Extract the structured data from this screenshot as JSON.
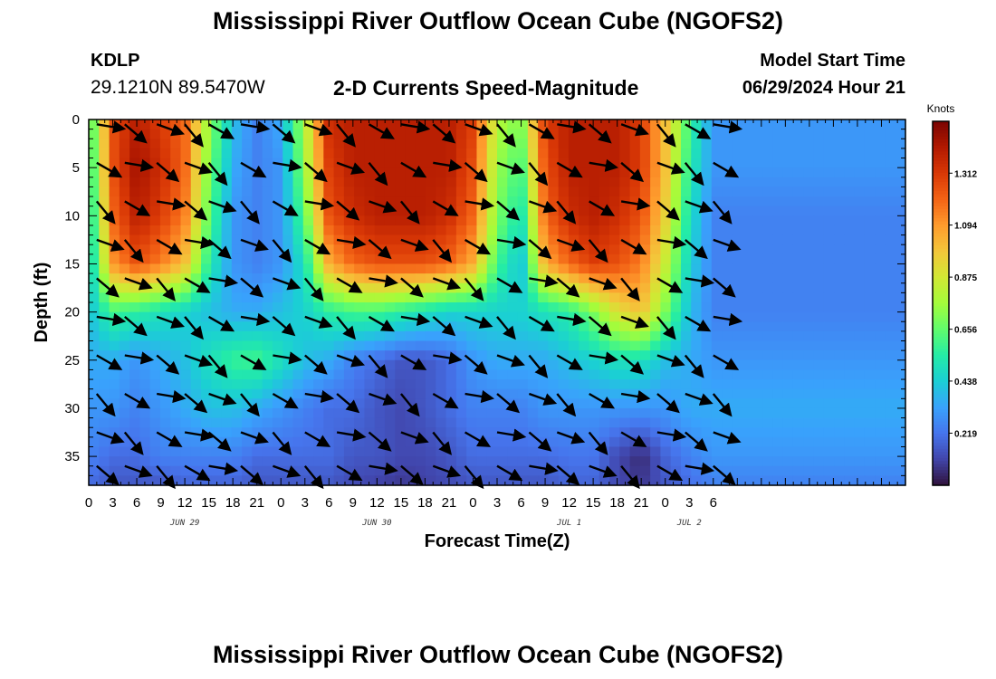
{
  "header": {
    "title": "Mississippi River Outflow Ocean Cube (NGOFS2)",
    "station_id": "KDLP",
    "station_coords": "29.1210N  89.5470W",
    "subtitle": "2-D Currents Speed-Magnitude",
    "model_start_label": "Model Start Time",
    "model_start_value": "06/29/2024 Hour 21"
  },
  "footer": {
    "title": "Mississippi River Outflow Ocean Cube (NGOFS2)"
  },
  "chart_data": {
    "type": "heatmap",
    "xlabel": "Forecast Time(Z)",
    "ylabel": "Depth (ft)",
    "x_range_hours": [
      0,
      102
    ],
    "y_range_ft": [
      0,
      38
    ],
    "y_inverted": true,
    "x_ticks": [
      {
        "hour": 0,
        "label": "0"
      },
      {
        "hour": 3,
        "label": "3"
      },
      {
        "hour": 6,
        "label": "6"
      },
      {
        "hour": 9,
        "label": "9"
      },
      {
        "hour": 12,
        "label": "12"
      },
      {
        "hour": 15,
        "label": "15"
      },
      {
        "hour": 18,
        "label": "18"
      },
      {
        "hour": 21,
        "label": "21"
      },
      {
        "hour": 24,
        "label": "0"
      },
      {
        "hour": 27,
        "label": "3"
      },
      {
        "hour": 30,
        "label": "6"
      },
      {
        "hour": 33,
        "label": "9"
      },
      {
        "hour": 36,
        "label": "12"
      },
      {
        "hour": 39,
        "label": "15"
      },
      {
        "hour": 42,
        "label": "18"
      },
      {
        "hour": 45,
        "label": "21"
      },
      {
        "hour": 48,
        "label": "0"
      },
      {
        "hour": 51,
        "label": "3"
      },
      {
        "hour": 54,
        "label": "6"
      },
      {
        "hour": 57,
        "label": "9"
      },
      {
        "hour": 60,
        "label": "12"
      },
      {
        "hour": 63,
        "label": "15"
      },
      {
        "hour": 66,
        "label": "18"
      },
      {
        "hour": 69,
        "label": "21"
      },
      {
        "hour": 72,
        "label": "0"
      },
      {
        "hour": 75,
        "label": "3"
      },
      {
        "hour": 78,
        "label": "6"
      }
    ],
    "y_ticks": [
      0,
      5,
      10,
      15,
      20,
      25,
      30,
      35
    ],
    "date_labels": [
      {
        "hour": 12,
        "label": "JUN 29"
      },
      {
        "hour": 36,
        "label": "JUN 30"
      },
      {
        "hour": 60,
        "label": "JUL 1"
      },
      {
        "hour": 75,
        "label": "JUL 2"
      }
    ],
    "colorbar": {
      "unit": "Knots",
      "min": 0.0,
      "max": 1.53,
      "ticks": [
        0.219,
        0.438,
        0.656,
        0.875,
        1.094,
        1.312
      ],
      "colors": [
        "#30123b",
        "#4145ab",
        "#4675ed",
        "#39a2fc",
        "#1bcfd4",
        "#24eca6",
        "#61fc6c",
        "#a4fc3b",
        "#d1e834",
        "#f3c63a",
        "#fe9b2d",
        "#f36315",
        "#d93806",
        "#b11901",
        "#7a0402"
      ]
    },
    "speed_field_knots": {
      "times_hours": [
        0,
        3,
        6,
        9,
        12,
        15,
        18,
        21,
        24,
        27,
        30,
        33,
        36,
        39,
        42,
        45,
        48,
        51,
        54,
        57,
        60,
        63,
        66,
        69,
        72,
        75,
        78
      ],
      "depths_ft": [
        0,
        5,
        10,
        15,
        20,
        25,
        30,
        35,
        38
      ],
      "values": [
        [
          0.55,
          1.25,
          1.4,
          1.3,
          1.2,
          0.75,
          0.4,
          0.25,
          0.35,
          0.8,
          1.35,
          1.4,
          1.4,
          1.4,
          1.4,
          1.4,
          1.3,
          0.8,
          0.7,
          1.3,
          1.4,
          1.4,
          1.4,
          1.3,
          1.0,
          0.6,
          0.3
        ],
        [
          0.5,
          1.25,
          1.45,
          1.35,
          1.2,
          0.7,
          0.35,
          0.25,
          0.3,
          0.75,
          1.3,
          1.4,
          1.4,
          1.4,
          1.4,
          1.4,
          1.25,
          0.75,
          0.6,
          1.25,
          1.4,
          1.4,
          1.4,
          1.3,
          1.0,
          0.55,
          0.3
        ],
        [
          0.45,
          1.2,
          1.4,
          1.3,
          1.15,
          0.65,
          0.3,
          0.25,
          0.3,
          0.65,
          1.25,
          1.35,
          1.4,
          1.4,
          1.4,
          1.35,
          1.2,
          0.7,
          0.5,
          1.2,
          1.35,
          1.4,
          1.35,
          1.25,
          0.95,
          0.5,
          0.25
        ],
        [
          0.4,
          1.1,
          1.25,
          1.15,
          1.0,
          0.55,
          0.3,
          0.25,
          0.3,
          0.5,
          1.05,
          1.2,
          1.25,
          1.25,
          1.25,
          1.2,
          1.05,
          0.6,
          0.4,
          1.05,
          1.2,
          1.3,
          1.25,
          1.15,
          0.85,
          0.45,
          0.25
        ],
        [
          0.4,
          0.6,
          0.55,
          0.5,
          0.45,
          0.4,
          0.35,
          0.35,
          0.4,
          0.45,
          0.55,
          0.6,
          0.6,
          0.55,
          0.5,
          0.45,
          0.45,
          0.45,
          0.45,
          0.5,
          0.55,
          0.7,
          0.9,
          1.0,
          0.7,
          0.4,
          0.25
        ],
        [
          0.35,
          0.35,
          0.3,
          0.35,
          0.4,
          0.5,
          0.58,
          0.6,
          0.5,
          0.4,
          0.35,
          0.25,
          0.2,
          0.15,
          0.15,
          0.2,
          0.3,
          0.35,
          0.35,
          0.35,
          0.4,
          0.45,
          0.5,
          0.5,
          0.4,
          0.35,
          0.3
        ],
        [
          0.3,
          0.3,
          0.25,
          0.3,
          0.35,
          0.4,
          0.4,
          0.35,
          0.3,
          0.25,
          0.2,
          0.2,
          0.15,
          0.12,
          0.15,
          0.2,
          0.25,
          0.25,
          0.25,
          0.3,
          0.3,
          0.3,
          0.3,
          0.3,
          0.3,
          0.35,
          0.35
        ],
        [
          0.25,
          0.2,
          0.2,
          0.25,
          0.25,
          0.25,
          0.25,
          0.2,
          0.2,
          0.2,
          0.2,
          0.15,
          0.15,
          0.12,
          0.12,
          0.15,
          0.2,
          0.2,
          0.2,
          0.2,
          0.22,
          0.22,
          0.12,
          0.05,
          0.18,
          0.25,
          0.3
        ],
        [
          0.2,
          0.15,
          0.15,
          0.15,
          0.18,
          0.18,
          0.18,
          0.15,
          0.15,
          0.15,
          0.15,
          0.12,
          0.1,
          0.08,
          0.1,
          0.12,
          0.15,
          0.15,
          0.15,
          0.15,
          0.18,
          0.18,
          0.12,
          0.08,
          0.15,
          0.2,
          0.25
        ]
      ]
    },
    "vectors": {
      "times_hours": [
        1,
        4.5,
        8.5,
        12,
        15,
        19,
        23,
        27,
        31,
        35,
        39,
        43,
        47,
        51,
        55,
        58.5,
        62.5,
        66.5,
        71,
        74.5,
        78
      ],
      "depths_ft": [
        0.5,
        4.5,
        8.5,
        12.5,
        16.5,
        20.5,
        24.5,
        28.5,
        32.5,
        36
      ],
      "direction_deg_from_x_clockwise": 30,
      "length_px": 28
    }
  }
}
